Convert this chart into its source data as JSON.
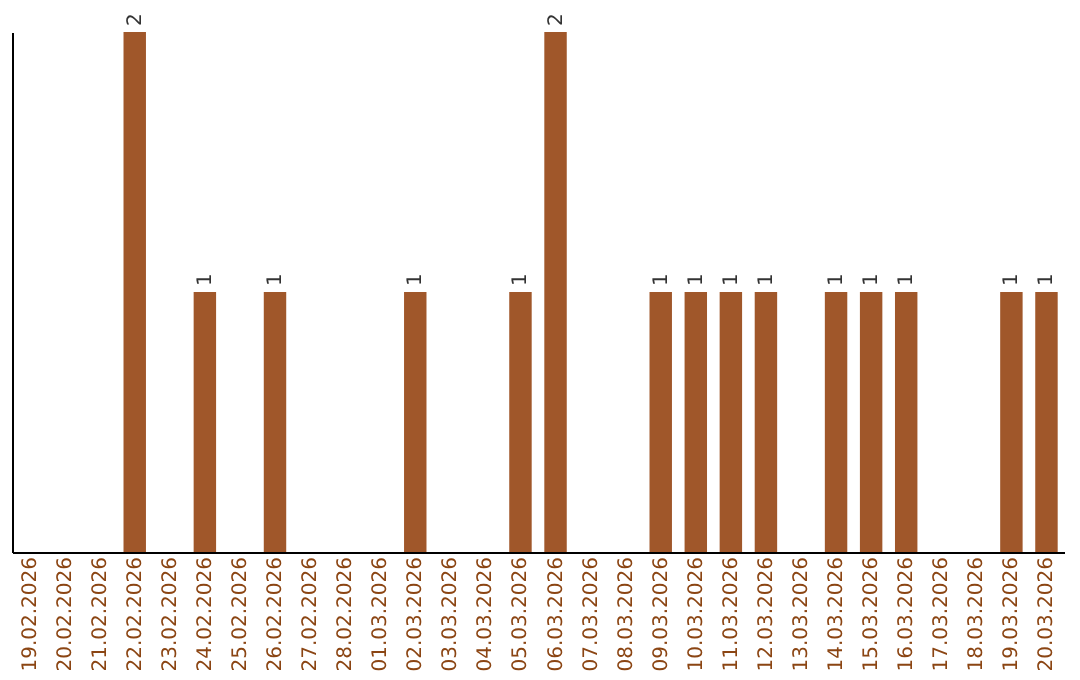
{
  "chart_data": {
    "type": "bar",
    "categories": [
      "19.02.2026",
      "20.02.2026",
      "21.02.2026",
      "22.02.2026",
      "23.02.2026",
      "24.02.2026",
      "25.02.2026",
      "26.02.2026",
      "27.02.2026",
      "28.02.2026",
      "01.03.2026",
      "02.03.2026",
      "03.03.2026",
      "04.03.2026",
      "05.03.2026",
      "06.03.2026",
      "07.03.2026",
      "08.03.2026",
      "09.03.2026",
      "10.03.2026",
      "11.03.2026",
      "12.03.2026",
      "13.03.2026",
      "14.03.2026",
      "15.03.2026",
      "16.03.2026",
      "17.03.2026",
      "18.03.2026",
      "19.03.2026",
      "20.03.2026"
    ],
    "values": [
      0,
      0,
      0,
      2,
      0,
      1,
      0,
      1,
      0,
      0,
      0,
      1,
      0,
      0,
      1,
      2,
      0,
      0,
      1,
      1,
      1,
      1,
      0,
      1,
      1,
      1,
      0,
      0,
      1,
      1
    ],
    "value_labels": [
      null,
      null,
      null,
      "2",
      null,
      "1",
      null,
      "1",
      null,
      null,
      null,
      "1",
      null,
      null,
      "1",
      "2",
      null,
      null,
      "1",
      "1",
      "1",
      "1",
      null,
      "1",
      "1",
      "1",
      null,
      null,
      "1",
      "1"
    ],
    "color": "#a0572a",
    "tick_labels": "x",
    "grid": false
  }
}
